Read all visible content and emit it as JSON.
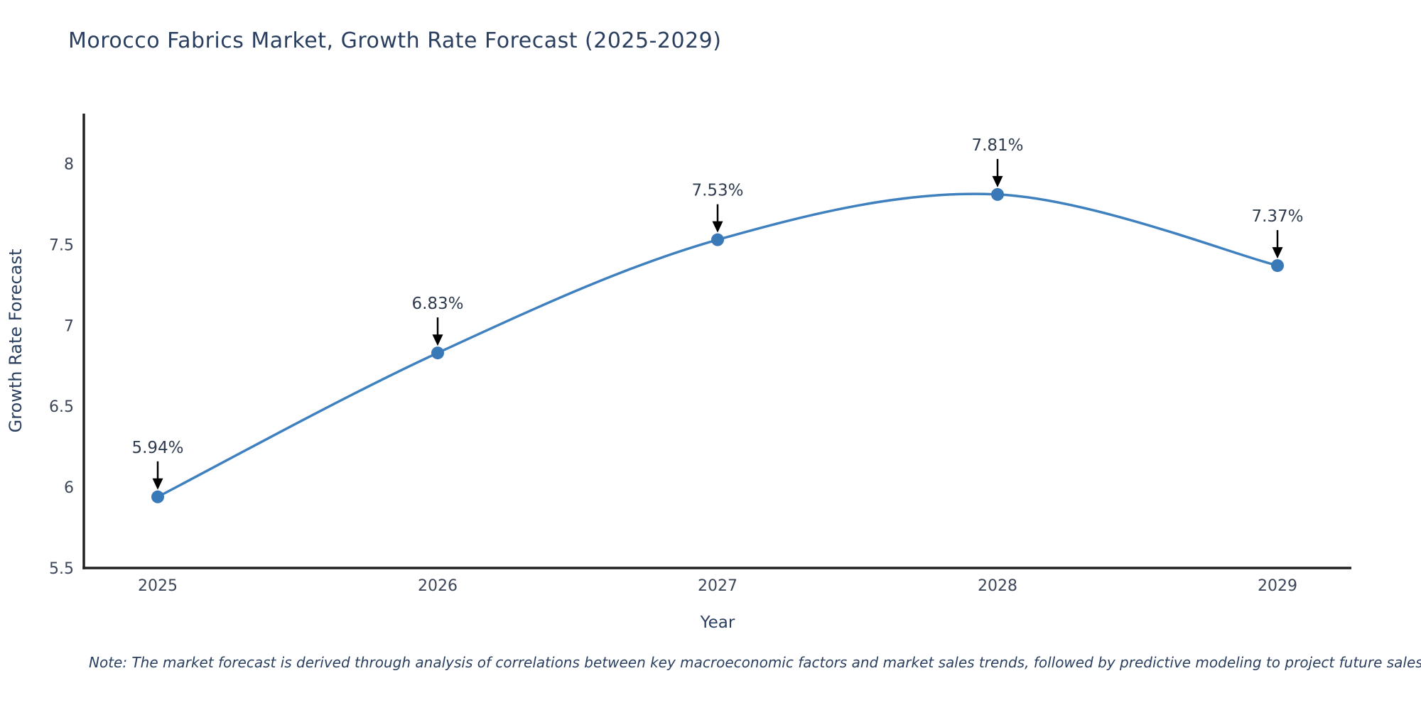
{
  "chart_data": {
    "type": "line",
    "title": "Morocco Fabrics Market, Growth Rate Forecast (2025-2029)",
    "x": [
      "2025",
      "2026",
      "2027",
      "2028",
      "2029"
    ],
    "y": [
      5.94,
      6.83,
      7.53,
      7.81,
      7.37
    ],
    "point_labels": [
      "5.94%",
      "6.83%",
      "7.53%",
      "7.81%",
      "7.37%"
    ],
    "xlabel": "Year",
    "ylabel": "Growth Rate Forecast",
    "ytick_values": [
      5.5,
      6,
      6.5,
      7,
      7.5,
      8
    ],
    "ytick_labels": [
      "5.5",
      "6",
      "6.5",
      "7",
      "7.5",
      "8"
    ],
    "ylim": [
      5.5,
      8.31
    ],
    "grid": false,
    "legend": "none",
    "line_smoothing": "spline",
    "line_color": "#3f80bf",
    "marker_color": "#3a79b8",
    "axis_color": "#222222",
    "arrow_color": "#000000",
    "tick_color": "#3c4658",
    "text_color": "#2a3f5f"
  },
  "note": {
    "text": "Note: The market forecast is derived through analysis of correlations between key macroeconomic factors and market sales trends, followed by predictive modeling to project future sales"
  }
}
